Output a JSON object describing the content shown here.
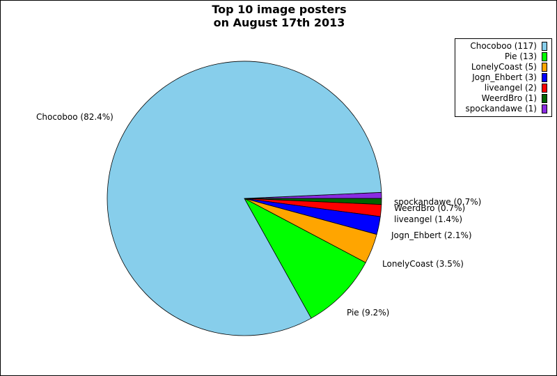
{
  "chart_data": {
    "type": "pie",
    "title": [
      "Top 10 image posters",
      "on August 17th 2013"
    ],
    "slices": [
      {
        "name": "Chocoboo",
        "value": 117,
        "percent": "82.4%",
        "color": "#87ceeb"
      },
      {
        "name": "Pie",
        "value": 13,
        "percent": "9.2%",
        "color": "#00ff00"
      },
      {
        "name": "LonelyCoast",
        "value": 5,
        "percent": "3.5%",
        "color": "#ffa500"
      },
      {
        "name": "Jogn_Ehbert",
        "value": 3,
        "percent": "2.1%",
        "color": "#0000ff"
      },
      {
        "name": "liveangel",
        "value": 2,
        "percent": "1.4%",
        "color": "#ff0000"
      },
      {
        "name": "WeerdBro",
        "value": 1,
        "percent": "0.7%",
        "color": "#006400"
      },
      {
        "name": "spockandawe",
        "value": 1,
        "percent": "0.7%",
        "color": "#8a2be2"
      }
    ],
    "legend": {
      "position": "top-right",
      "entries": [
        "Chocoboo (117)",
        "Pie (13)",
        "LonelyCoast (5)",
        "Jogn_Ehbert (3)",
        "liveangel (2)",
        "WeerdBro (1)",
        "spockandawe (1)"
      ]
    },
    "slice_labels": [
      "Chocoboo (82.4%)",
      "Pie (9.2%)",
      "LonelyCoast (3.5%)",
      "Jogn_Ehbert (2.1%)",
      "liveangel (1.4%)",
      "WeerdBro (0.7%)",
      "spockandawe (0.7%)"
    ]
  }
}
